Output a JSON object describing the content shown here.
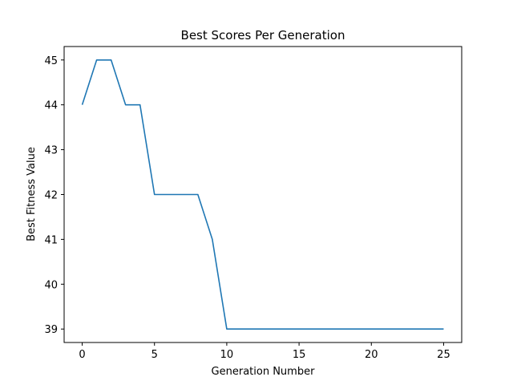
{
  "chart_data": {
    "type": "line",
    "title": "Best Scores Per Generation",
    "xlabel": "Generation Number",
    "ylabel": "Best Fitness Value",
    "xlim": [
      -1.25,
      26.25
    ],
    "ylim": [
      38.7,
      45.3
    ],
    "xticks": [
      0,
      5,
      10,
      15,
      20,
      25
    ],
    "yticks": [
      39,
      40,
      41,
      42,
      43,
      44,
      45
    ],
    "grid": false,
    "legend": "none",
    "series": [
      {
        "color": "#1f77b4",
        "x": [
          0,
          1,
          2,
          3,
          4,
          5,
          6,
          7,
          8,
          9,
          10,
          11,
          12,
          13,
          14,
          15,
          16,
          17,
          18,
          19,
          20,
          21,
          22,
          23,
          24,
          25
        ],
        "y": [
          44,
          45,
          45,
          44,
          44,
          42,
          42,
          42,
          42,
          41,
          39,
          39,
          39,
          39,
          39,
          39,
          39,
          39,
          39,
          39,
          39,
          39,
          39,
          39,
          39,
          39
        ]
      }
    ]
  }
}
